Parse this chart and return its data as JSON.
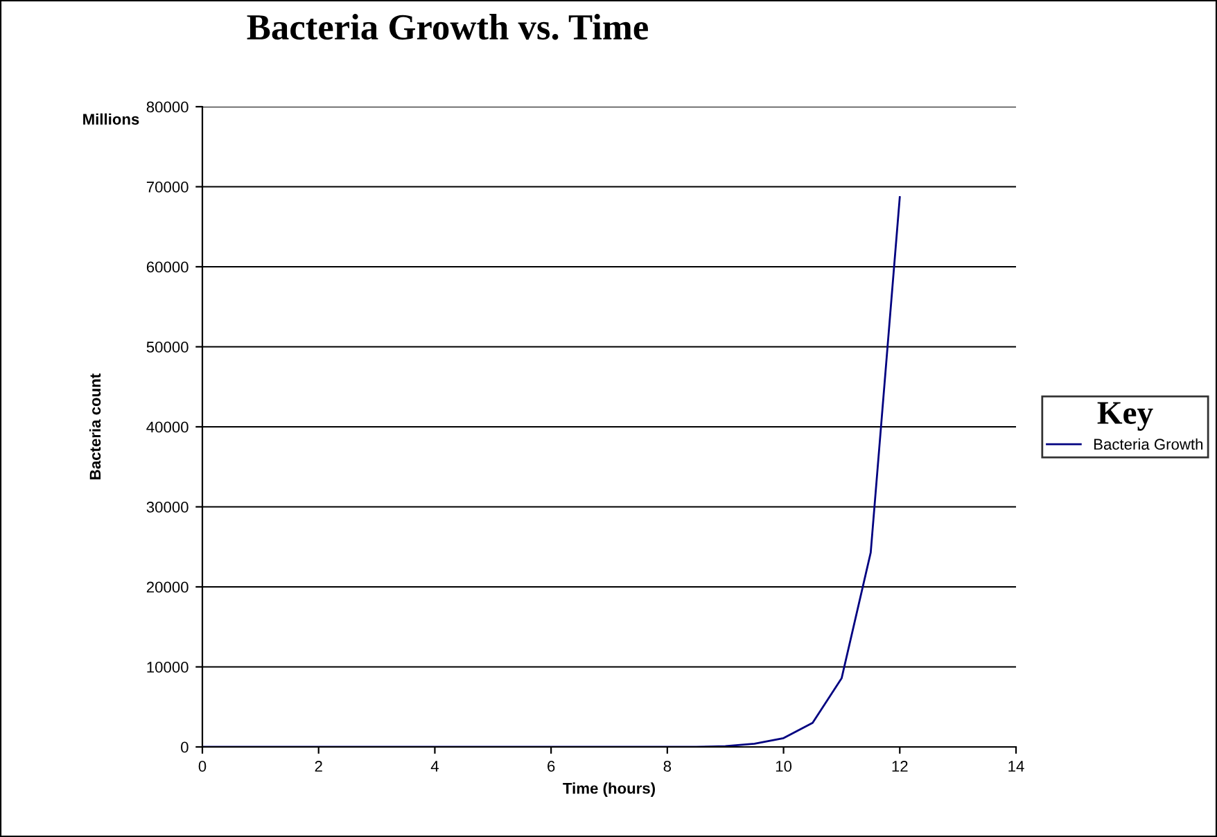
{
  "chart_data": {
    "type": "line",
    "title": "Bacteria Growth vs. Time",
    "xlabel": "Time (hours)",
    "ylabel": "Bacteria count",
    "legend_title": "Key",
    "annotations": [
      "Millions"
    ],
    "x": [
      0,
      8,
      8.5,
      9,
      9.5,
      10,
      10.5,
      11,
      11.5,
      12
    ],
    "series": [
      {
        "name": "Bacteria Growth",
        "color": "#000080",
        "values": [
          0,
          0,
          0,
          100,
          400,
          1100,
          3000,
          8600,
          24300,
          68700
        ]
      }
    ],
    "xlim": [
      0,
      14
    ],
    "xticks": [
      0,
      2,
      4,
      6,
      8,
      10,
      12,
      14
    ],
    "ylim": [
      0,
      80000
    ],
    "yticks": [
      0,
      10000,
      20000,
      30000,
      40000,
      50000,
      60000,
      70000,
      80000
    ],
    "grid": "y",
    "legend": "right",
    "marker": "none",
    "line_style": "solid"
  }
}
